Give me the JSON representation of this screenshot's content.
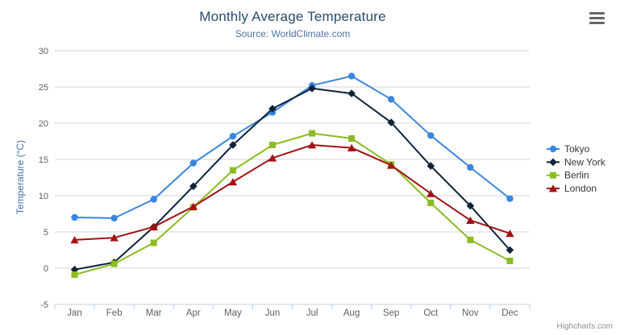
{
  "chart": {
    "title": "Monthly Average Temperature",
    "subtitle": "Source: WorldClimate.com",
    "credit": "Highcharts.com",
    "menu_icon": "hamburger-menu-icon"
  },
  "chart_data": {
    "type": "line",
    "title": "Monthly Average Temperature",
    "subtitle": "Source: WorldClimate.com",
    "categories": [
      "Jan",
      "Feb",
      "Mar",
      "Apr",
      "May",
      "Jun",
      "Jul",
      "Aug",
      "Sep",
      "Oct",
      "Nov",
      "Dec"
    ],
    "xlabel": "",
    "ylabel": "Temperature (°C)",
    "ylim": [
      -5,
      30
    ],
    "yticks": [
      -5,
      0,
      5,
      10,
      15,
      20,
      25,
      30
    ],
    "grid": true,
    "legend_position": "right",
    "colors": {
      "grid": "#d6d6d6",
      "axis_line": "#c0d0e0",
      "tick_label": "#606060",
      "axis_title": "#4572a7",
      "legend_text": "#333333"
    },
    "series": [
      {
        "name": "Tokyo",
        "color": "#3b86e0",
        "marker": "circle",
        "values": [
          7.0,
          6.9,
          9.5,
          14.5,
          18.2,
          21.5,
          25.2,
          26.5,
          23.3,
          18.3,
          13.9,
          9.6
        ]
      },
      {
        "name": "New York",
        "color": "#0d233a",
        "marker": "diamond",
        "values": [
          -0.2,
          0.8,
          5.7,
          11.3,
          17.0,
          22.0,
          24.8,
          24.1,
          20.1,
          14.1,
          8.6,
          2.5
        ]
      },
      {
        "name": "Berlin",
        "color": "#8bbc21",
        "marker": "square",
        "values": [
          -0.9,
          0.6,
          3.5,
          8.4,
          13.5,
          17.0,
          18.6,
          17.9,
          14.3,
          9.0,
          3.9,
          1.0
        ]
      },
      {
        "name": "London",
        "color": "#a11212",
        "marker": "triangle",
        "values": [
          3.9,
          4.2,
          5.7,
          8.5,
          11.9,
          15.2,
          17.0,
          16.6,
          14.2,
          10.3,
          6.6,
          4.8
        ]
      }
    ]
  }
}
